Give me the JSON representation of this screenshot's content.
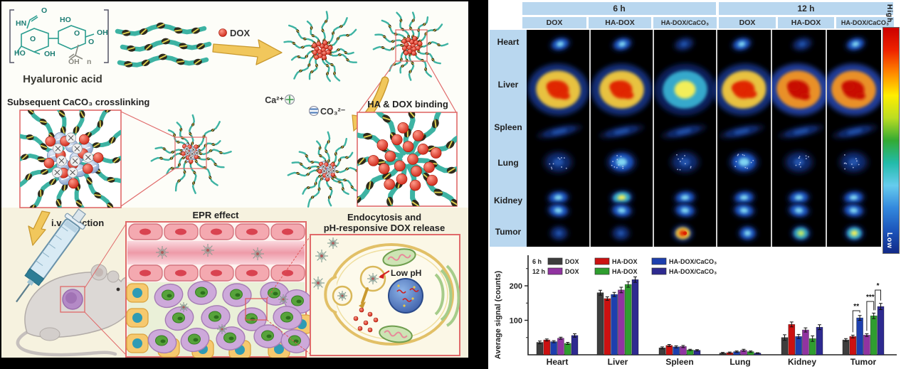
{
  "left_figure": {
    "hyaluronic_acid_label": "Hyaluronic acid",
    "polymer_atoms": [
      "HN",
      "O",
      "HO",
      "OH",
      "O",
      "O",
      "HO",
      "OH",
      "O",
      "OH",
      "n"
    ],
    "dox_label": "DOX",
    "ca_ion_label": "Ca²⁺",
    "co3_ion_label": "CO₃²⁻",
    "crosslink_title": "Subsequent CaCO₃ crosslinking",
    "binding_title": "HA & DOX binding",
    "iv_injection_label": "i.v. injection",
    "epr_title": "EPR effect",
    "endocytosis_title_line1": "Endocytosis and",
    "endocytosis_title_line2": "pH-responsive DOX release",
    "low_ph_label": "Low pH",
    "accent_red": "#e06a6a",
    "chain_teal": "#3db3a3",
    "arrow_yellow": "#f1c75c"
  },
  "right_figure": {
    "time_headers": [
      "6 h",
      "12 h"
    ],
    "column_headers": [
      "DOX",
      "HA-DOX",
      "HA-DOX/CaCO₃",
      "DOX",
      "HA-DOX",
      "HA-DOX/CaCO₃"
    ],
    "organ_labels": [
      "Heart",
      "Liver",
      "Spleen",
      "Lung",
      "Kidney",
      "Tumor"
    ],
    "colorbar": {
      "high_label": "High",
      "low_label": "Low",
      "colors": [
        "#cc0000",
        "#ee2200",
        "#ff8800",
        "#ffee00",
        "#bbdd22",
        "#33aa33",
        "#22bbaa",
        "#66ccee",
        "#3388dd",
        "#1c55bb",
        "#122a88"
      ]
    },
    "header_bg": "#b9d7ef",
    "grid_levels": [
      [
        "low",
        "low",
        "faint",
        "low",
        "faint",
        "low"
      ],
      [
        "high",
        "high",
        "med",
        "high",
        "max",
        "max"
      ],
      [
        "faint",
        "faint",
        "faint",
        "faint",
        "faint",
        "faint"
      ],
      [
        "faint",
        "low",
        "faint",
        "low",
        "faint",
        "faint"
      ],
      [
        "low",
        "med",
        "low",
        "low",
        "low",
        "low"
      ],
      [
        "faint",
        "faint",
        "high",
        "low",
        "green",
        "med"
      ]
    ]
  },
  "chart_data": {
    "type": "bar",
    "title": "",
    "xlabel": "",
    "ylabel": "Average signal (counts)",
    "categories": [
      "Heart",
      "Liver",
      "Spleen",
      "Lung",
      "Kidney",
      "Tumor"
    ],
    "series": [
      {
        "name": "6 h DOX",
        "color": "#3d3d3d",
        "values": [
          36,
          180,
          20,
          5,
          50,
          43
        ],
        "errors": [
          4,
          7,
          3,
          2,
          8,
          4
        ]
      },
      {
        "name": "6 h HA-DOX",
        "color": "#cc1111",
        "values": [
          43,
          163,
          27,
          6,
          88,
          53
        ],
        "errors": [
          3,
          5,
          3,
          2,
          7,
          4
        ]
      },
      {
        "name": "6 h HA-DOX/CaCO₃",
        "color": "#1d3fae",
        "values": [
          38,
          175,
          23,
          9,
          53,
          107
        ],
        "errors": [
          3,
          6,
          3,
          2,
          6,
          7
        ]
      },
      {
        "name": "12 h DOX",
        "color": "#9133a1",
        "values": [
          48,
          188,
          24,
          13,
          72,
          57
        ],
        "errors": [
          3,
          8,
          3,
          3,
          6,
          4
        ]
      },
      {
        "name": "12 h HA-DOX",
        "color": "#2f9e2f",
        "values": [
          33,
          204,
          14,
          9,
          47,
          113
        ],
        "errors": [
          3,
          8,
          2,
          2,
          8,
          8
        ]
      },
      {
        "name": "12 h HA-DOX/CaCO₃",
        "color": "#2e2a90",
        "values": [
          56,
          218,
          13,
          5,
          80,
          140
        ],
        "errors": [
          5,
          8,
          2,
          1,
          7,
          9
        ]
      }
    ],
    "legend_rows": [
      {
        "time": "6 h",
        "entries": [
          "DOX",
          "HA-DOX",
          "HA-DOX/CaCO₃"
        ]
      },
      {
        "time": "12 h",
        "entries": [
          "DOX",
          "HA-DOX",
          "HA-DOX/CaCO₃"
        ]
      }
    ],
    "ylim": [
      0,
      275
    ],
    "yticks": [
      100,
      200
    ],
    "grid": false,
    "legend_position": "top-left",
    "significance": [
      {
        "category": "Tumor",
        "from": 1,
        "to": 2,
        "label": "**"
      },
      {
        "category": "Tumor",
        "from": 3,
        "to": 4,
        "label": "***"
      },
      {
        "category": "Tumor",
        "from": 4,
        "to": 5,
        "label": "*"
      }
    ]
  }
}
